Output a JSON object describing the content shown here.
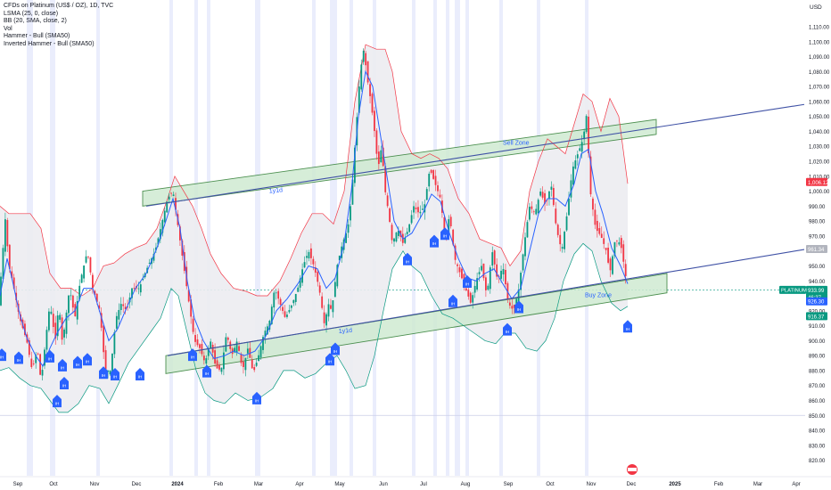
{
  "legend": {
    "title": "CFDs on Platinum (US$ / OZ), 1D, TVC",
    "lines": [
      "LSMA (25, 0, close)",
      "BB (20, SMA, close, 2)",
      "Vol",
      "Hammer - Bull (SMA50)",
      "Inverted Hammer - Bull (SMA50)"
    ]
  },
  "currency": "USD",
  "colors": {
    "up": "#089981",
    "down": "#f23645",
    "lsma": "#2962ff",
    "bb_upper": "#f23645",
    "bb_lower": "#089981",
    "bb_fill": "#ececf1",
    "zone_fill": "#cfead2",
    "zone_border": "#2e7d32",
    "trendline": "#3f51a5",
    "badge": "#2962ff",
    "highlight": "#d9def9"
  },
  "chart_data": {
    "type": "candlestick",
    "ylim": [
      815,
      1116
    ],
    "y_ticks": [
      "820.00",
      "830.00",
      "840.00",
      "850.00",
      "860.00",
      "870.00",
      "880.00",
      "890.00",
      "900.00",
      "910.00",
      "920.00",
      "930.00",
      "940.00",
      "950.00",
      "960.00",
      "970.00",
      "980.00",
      "990.00",
      "1,000.00",
      "1,010.00",
      "1,020.00",
      "1,030.00",
      "1,040.00",
      "1,050.00",
      "1,060.00",
      "1,070.00",
      "1,080.00",
      "1,090.00",
      "1,100.00",
      "1,110.00"
    ],
    "x_ticks": [
      "Sep",
      "Oct",
      "Nov",
      "Dec",
      "2024",
      "Feb",
      "Mar",
      "Apr",
      "May",
      "Jun",
      "Jul",
      "Aug",
      "Sep",
      "Oct",
      "Nov",
      "Dec",
      "2025",
      "Feb",
      "Mar",
      "Apr"
    ],
    "price_path": [
      [
        0,
        935
      ],
      [
        6,
        982
      ],
      [
        10,
        950
      ],
      [
        14,
        940
      ],
      [
        22,
        915
      ],
      [
        30,
        900
      ],
      [
        36,
        880
      ],
      [
        42,
        895
      ],
      [
        46,
        872
      ],
      [
        52,
        905
      ],
      [
        56,
        925
      ],
      [
        62,
        900
      ],
      [
        66,
        925
      ],
      [
        70,
        898
      ],
      [
        78,
        935
      ],
      [
        84,
        915
      ],
      [
        90,
        940
      ],
      [
        98,
        960
      ],
      [
        104,
        935
      ],
      [
        112,
        920
      ],
      [
        118,
        880
      ],
      [
        124,
        880
      ],
      [
        130,
        915
      ],
      [
        136,
        925
      ],
      [
        142,
        920
      ],
      [
        148,
        935
      ],
      [
        156,
        935
      ],
      [
        166,
        950
      ],
      [
        174,
        960
      ],
      [
        180,
        975
      ],
      [
        188,
        995
      ],
      [
        194,
        1000
      ],
      [
        200,
        975
      ],
      [
        206,
        950
      ],
      [
        212,
        925
      ],
      [
        218,
        900
      ],
      [
        224,
        895
      ],
      [
        230,
        885
      ],
      [
        236,
        900
      ],
      [
        242,
        882
      ],
      [
        248,
        880
      ],
      [
        254,
        905
      ],
      [
        260,
        890
      ],
      [
        266,
        900
      ],
      [
        272,
        880
      ],
      [
        278,
        895
      ],
      [
        284,
        878
      ],
      [
        290,
        890
      ],
      [
        296,
        905
      ],
      [
        302,
        912
      ],
      [
        308,
        935
      ],
      [
        314,
        925
      ],
      [
        320,
        915
      ],
      [
        328,
        925
      ],
      [
        334,
        935
      ],
      [
        340,
        950
      ],
      [
        346,
        960
      ],
      [
        352,
        950
      ],
      [
        358,
        935
      ],
      [
        364,
        910
      ],
      [
        368,
        925
      ],
      [
        372,
        920
      ],
      [
        378,
        950
      ],
      [
        384,
        965
      ],
      [
        390,
        975
      ],
      [
        394,
        995
      ],
      [
        398,
        1030
      ],
      [
        404,
        1080
      ],
      [
        408,
        1095
      ],
      [
        412,
        1075
      ],
      [
        416,
        1060
      ],
      [
        420,
        1040
      ],
      [
        424,
        1015
      ],
      [
        428,
        1030
      ],
      [
        432,
        1000
      ],
      [
        436,
        985
      ],
      [
        440,
        965
      ],
      [
        446,
        975
      ],
      [
        452,
        965
      ],
      [
        458,
        975
      ],
      [
        464,
        990
      ],
      [
        470,
        985
      ],
      [
        476,
        990
      ],
      [
        482,
        1015
      ],
      [
        488,
        1005
      ],
      [
        494,
        995
      ],
      [
        500,
        965
      ],
      [
        504,
        985
      ],
      [
        510,
        955
      ],
      [
        516,
        945
      ],
      [
        522,
        935
      ],
      [
        528,
        925
      ],
      [
        534,
        940
      ],
      [
        540,
        950
      ],
      [
        546,
        930
      ],
      [
        552,
        960
      ],
      [
        558,
        940
      ],
      [
        564,
        950
      ],
      [
        570,
        925
      ],
      [
        576,
        920
      ],
      [
        582,
        935
      ],
      [
        588,
        965
      ],
      [
        594,
        990
      ],
      [
        600,
        985
      ],
      [
        606,
        1000
      ],
      [
        612,
        990
      ],
      [
        618,
        1005
      ],
      [
        624,
        975
      ],
      [
        630,
        960
      ],
      [
        636,
        985
      ],
      [
        642,
        1015
      ],
      [
        648,
        1025
      ],
      [
        654,
        1035
      ],
      [
        658,
        1052
      ],
      [
        662,
        1000
      ],
      [
        668,
        975
      ],
      [
        674,
        970
      ],
      [
        680,
        960
      ],
      [
        684,
        945
      ],
      [
        690,
        968
      ],
      [
        696,
        965
      ],
      [
        700,
        950
      ],
      [
        704,
        934
      ]
    ],
    "lsma_path": [
      [
        0,
        930
      ],
      [
        8,
        955
      ],
      [
        14,
        940
      ],
      [
        22,
        918
      ],
      [
        30,
        902
      ],
      [
        40,
        890
      ],
      [
        48,
        883
      ],
      [
        56,
        895
      ],
      [
        64,
        905
      ],
      [
        74,
        915
      ],
      [
        84,
        920
      ],
      [
        94,
        935
      ],
      [
        104,
        935
      ],
      [
        114,
        915
      ],
      [
        122,
        900
      ],
      [
        132,
        908
      ],
      [
        142,
        922
      ],
      [
        152,
        935
      ],
      [
        164,
        945
      ],
      [
        176,
        962
      ],
      [
        186,
        980
      ],
      [
        194,
        995
      ],
      [
        202,
        975
      ],
      [
        210,
        940
      ],
      [
        218,
        915
      ],
      [
        228,
        900
      ],
      [
        240,
        888
      ],
      [
        252,
        890
      ],
      [
        262,
        893
      ],
      [
        274,
        890
      ],
      [
        286,
        893
      ],
      [
        298,
        903
      ],
      [
        310,
        920
      ],
      [
        322,
        928
      ],
      [
        334,
        938
      ],
      [
        346,
        950
      ],
      [
        356,
        948
      ],
      [
        366,
        935
      ],
      [
        376,
        942
      ],
      [
        386,
        965
      ],
      [
        394,
        1000
      ],
      [
        402,
        1050
      ],
      [
        410,
        1080
      ],
      [
        418,
        1070
      ],
      [
        426,
        1040
      ],
      [
        434,
        1010
      ],
      [
        442,
        980
      ],
      [
        452,
        968
      ],
      [
        462,
        972
      ],
      [
        474,
        985
      ],
      [
        484,
        998
      ],
      [
        494,
        993
      ],
      [
        504,
        972
      ],
      [
        514,
        955
      ],
      [
        524,
        942
      ],
      [
        534,
        940
      ],
      [
        544,
        945
      ],
      [
        554,
        948
      ],
      [
        564,
        938
      ],
      [
        574,
        928
      ],
      [
        584,
        935
      ],
      [
        594,
        960
      ],
      [
        604,
        985
      ],
      [
        614,
        995
      ],
      [
        624,
        995
      ],
      [
        634,
        990
      ],
      [
        644,
        1005
      ],
      [
        652,
        1025
      ],
      [
        660,
        1028
      ],
      [
        668,
        1000
      ],
      [
        676,
        985
      ],
      [
        686,
        962
      ],
      [
        696,
        950
      ],
      [
        704,
        938
      ]
    ],
    "bb_upper_path": [
      [
        0,
        990
      ],
      [
        10,
        985
      ],
      [
        22,
        985
      ],
      [
        34,
        985
      ],
      [
        46,
        975
      ],
      [
        56,
        945
      ],
      [
        68,
        935
      ],
      [
        80,
        935
      ],
      [
        92,
        930
      ],
      [
        104,
        935
      ],
      [
        116,
        950
      ],
      [
        128,
        952
      ],
      [
        140,
        958
      ],
      [
        152,
        962
      ],
      [
        164,
        965
      ],
      [
        176,
        975
      ],
      [
        188,
        995
      ],
      [
        196,
        1010
      ],
      [
        206,
        1000
      ],
      [
        216,
        990
      ],
      [
        226,
        975
      ],
      [
        236,
        958
      ],
      [
        248,
        945
      ],
      [
        262,
        935
      ],
      [
        276,
        933
      ],
      [
        288,
        930
      ],
      [
        300,
        930
      ],
      [
        314,
        940
      ],
      [
        326,
        955
      ],
      [
        338,
        972
      ],
      [
        350,
        985
      ],
      [
        362,
        985
      ],
      [
        374,
        978
      ],
      [
        386,
        1000
      ],
      [
        398,
        1060
      ],
      [
        410,
        1098
      ],
      [
        422,
        1095
      ],
      [
        432,
        1095
      ],
      [
        440,
        1080
      ],
      [
        450,
        1040
      ],
      [
        462,
        1025
      ],
      [
        472,
        1022
      ],
      [
        482,
        1025
      ],
      [
        492,
        1022
      ],
      [
        502,
        1015
      ],
      [
        514,
        995
      ],
      [
        526,
        985
      ],
      [
        538,
        968
      ],
      [
        550,
        965
      ],
      [
        562,
        962
      ],
      [
        572,
        950
      ],
      [
        584,
        960
      ],
      [
        594,
        1000
      ],
      [
        604,
        1020
      ],
      [
        614,
        1035
      ],
      [
        624,
        1030
      ],
      [
        634,
        1025
      ],
      [
        644,
        1045
      ],
      [
        654,
        1065
      ],
      [
        664,
        1060
      ],
      [
        674,
        1040
      ],
      [
        684,
        1062
      ],
      [
        694,
        1050
      ],
      [
        704,
        1005
      ]
    ],
    "bb_lower_path": [
      [
        0,
        880
      ],
      [
        10,
        882
      ],
      [
        22,
        875
      ],
      [
        34,
        870
      ],
      [
        46,
        868
      ],
      [
        56,
        860
      ],
      [
        66,
        852
      ],
      [
        76,
        852
      ],
      [
        88,
        858
      ],
      [
        100,
        870
      ],
      [
        112,
        868
      ],
      [
        122,
        858
      ],
      [
        132,
        870
      ],
      [
        144,
        885
      ],
      [
        156,
        895
      ],
      [
        168,
        905
      ],
      [
        180,
        915
      ],
      [
        192,
        935
      ],
      [
        200,
        930
      ],
      [
        210,
        905
      ],
      [
        220,
        880
      ],
      [
        230,
        865
      ],
      [
        240,
        860
      ],
      [
        252,
        858
      ],
      [
        264,
        865
      ],
      [
        278,
        860
      ],
      [
        292,
        862
      ],
      [
        306,
        868
      ],
      [
        318,
        880
      ],
      [
        330,
        880
      ],
      [
        342,
        875
      ],
      [
        354,
        878
      ],
      [
        366,
        885
      ],
      [
        378,
        890
      ],
      [
        388,
        880
      ],
      [
        398,
        868
      ],
      [
        410,
        870
      ],
      [
        420,
        890
      ],
      [
        430,
        920
      ],
      [
        440,
        948
      ],
      [
        452,
        960
      ],
      [
        462,
        950
      ],
      [
        472,
        945
      ],
      [
        484,
        930
      ],
      [
        496,
        918
      ],
      [
        508,
        915
      ],
      [
        520,
        910
      ],
      [
        532,
        905
      ],
      [
        544,
        900
      ],
      [
        556,
        898
      ],
      [
        566,
        905
      ],
      [
        578,
        905
      ],
      [
        590,
        895
      ],
      [
        602,
        893
      ],
      [
        612,
        900
      ],
      [
        622,
        915
      ],
      [
        632,
        940
      ],
      [
        644,
        958
      ],
      [
        654,
        965
      ],
      [
        664,
        960
      ],
      [
        674,
        940
      ],
      [
        686,
        925
      ],
      [
        696,
        920
      ],
      [
        704,
        923
      ]
    ],
    "zones": [
      {
        "label": "Sell Zone",
        "channel_label": "1y1d",
        "y_left": [
          1000,
          990
        ],
        "y_right": [
          1048,
          1038
        ],
        "x": [
          160,
          736
        ],
        "label_pos": [
          564,
          1031
        ]
      },
      {
        "label": "Buy Zone",
        "channel_label": "1y1d",
        "y_left": [
          890,
          878
        ],
        "y_right": [
          945,
          932
        ],
        "x": [
          186,
          748
        ],
        "label_pos": [
          656,
          929
        ]
      }
    ],
    "trendlines": [
      {
        "x": [
          164,
          902
        ],
        "y": [
          990,
          1058
        ]
      },
      {
        "x": [
          188,
          902
        ],
        "y": [
          890,
          961
        ]
      }
    ],
    "badges": [
      {
        "text": "IH",
        "x": 2,
        "price": 890
      },
      {
        "text": "IH",
        "x": 21,
        "price": 888
      },
      {
        "text": "IH",
        "x": 56,
        "price": 889
      },
      {
        "text": "IH",
        "x": 70,
        "price": 883
      },
      {
        "text": "IH",
        "x": 87,
        "price": 885
      },
      {
        "text": "IH",
        "x": 98,
        "price": 887
      },
      {
        "text": "IH",
        "x": 116,
        "price": 878
      },
      {
        "text": "IH",
        "x": 129,
        "price": 877
      },
      {
        "text": "IH",
        "x": 157,
        "price": 877
      },
      {
        "text": "IH",
        "x": 72,
        "price": 871
      },
      {
        "text": "IH",
        "x": 64,
        "price": 859
      },
      {
        "text": "IH",
        "x": 216,
        "price": 890
      },
      {
        "text": "IH",
        "x": 232,
        "price": 879
      },
      {
        "text": "IH",
        "x": 288,
        "price": 861
      },
      {
        "text": "IH",
        "x": 370,
        "price": 887
      },
      {
        "text": "IH",
        "x": 376,
        "price": 894
      },
      {
        "text": "IH",
        "x": 457,
        "price": 954
      },
      {
        "text": "IH",
        "x": 487,
        "price": 966
      },
      {
        "text": "IH",
        "x": 499,
        "price": 971
      },
      {
        "text": "IH",
        "x": 524,
        "price": 939
      },
      {
        "text": "IH",
        "x": 508,
        "price": 926
      },
      {
        "text": "IH",
        "x": 582,
        "price": 922
      },
      {
        "text": "IH",
        "x": 569,
        "price": 907
      },
      {
        "text": "IH",
        "x": 704,
        "price": 909
      }
    ],
    "tags": [
      {
        "text": "1,006.12",
        "price": 1006.12,
        "bg": "#f23645",
        "fg": "#ffffff"
      },
      {
        "text": "961.34",
        "price": 961.34,
        "bg": "#b2b5be",
        "fg": "#ffffff"
      },
      {
        "text": "933.99",
        "price": 933.99,
        "bg": "#089981",
        "fg": "#ffffff"
      },
      {
        "text": "46:37",
        "price": 929.2,
        "bg": "#089981",
        "fg": "#ffffff"
      },
      {
        "text": "926.30",
        "price": 926.3,
        "bg": "#2962ff",
        "fg": "#ffffff"
      },
      {
        "text": "916.37",
        "price": 916.37,
        "bg": "#089981",
        "fg": "#ffffff"
      }
    ],
    "symbol_label": "PLATINUM",
    "last_price": 933.99
  }
}
